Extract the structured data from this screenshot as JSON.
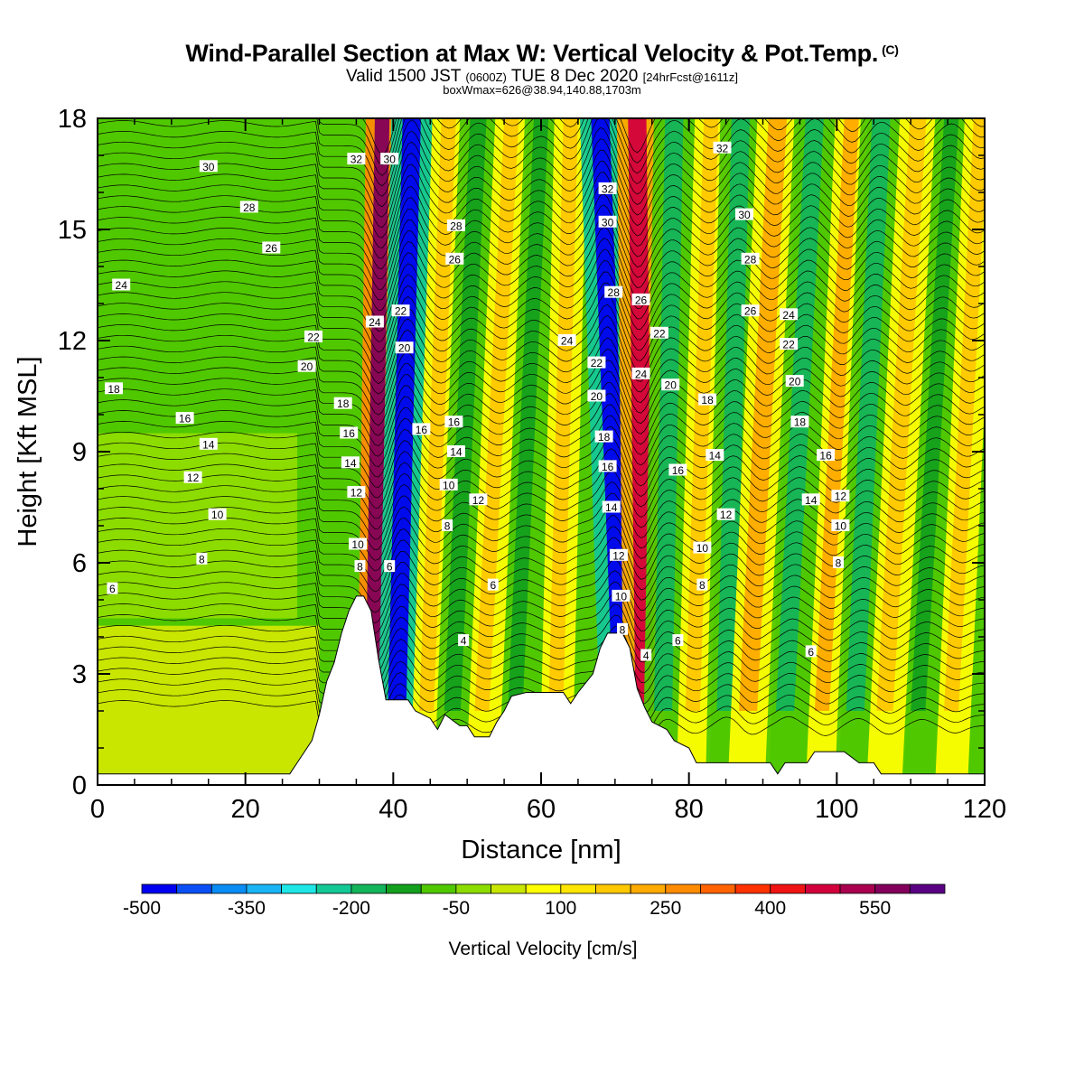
{
  "title": {
    "main": "Wind-Parallel Section at Max W: Vertical Velocity & Pot.Temp.",
    "copyright": "(C)",
    "valid_prefix": "Valid 1500 JST",
    "valid_utc": "(0600Z)",
    "valid_date": "TUE 8 Dec 2020",
    "forecast": "[24hrFcst@1611z]",
    "boxinfo": "boxWmax=626@38.94,140.88,1703m"
  },
  "chart_data": {
    "type": "heatmap",
    "xlabel": "Distance [nm]",
    "ylabel": "Height [Kft MSL]",
    "xlim": [
      0,
      120
    ],
    "ylim": [
      0,
      18
    ],
    "x_ticks": [
      "0",
      "20",
      "40",
      "60",
      "80",
      "100",
      "120"
    ],
    "y_ticks": [
      "0",
      "3",
      "6",
      "9",
      "12",
      "15",
      "18"
    ],
    "colorbar": {
      "label": "Vertical Velocity [cm/s]",
      "tick_labels": [
        "-500",
        "-350",
        "-200",
        "-50",
        "100",
        "250",
        "400",
        "550"
      ],
      "tick_values": [
        -500,
        -350,
        -200,
        -50,
        100,
        250,
        400,
        550
      ],
      "bins": [
        -500,
        -450,
        -400,
        -350,
        -300,
        -250,
        -200,
        -150,
        -100,
        -50,
        0,
        50,
        100,
        150,
        200,
        250,
        300,
        350,
        400,
        450,
        500,
        550,
        600
      ],
      "colors": [
        "#0000f0",
        "#0a50f5",
        "#0a8cf5",
        "#1ab4f5",
        "#1ee6e6",
        "#14c896",
        "#14b45a",
        "#14a01e",
        "#50c800",
        "#8cdc00",
        "#c8e600",
        "#ffff00",
        "#ffe600",
        "#ffc800",
        "#ffaa00",
        "#ff8c00",
        "#ff6400",
        "#ff3200",
        "#f01414",
        "#d2003c",
        "#aa0050",
        "#82005a",
        "#5a0082"
      ]
    },
    "terrain_kft": [
      [
        0,
        0.3
      ],
      [
        26,
        0.3
      ],
      [
        27,
        0.6
      ],
      [
        29,
        1.2
      ],
      [
        30,
        1.9
      ],
      [
        31,
        2.8
      ],
      [
        32,
        3.3
      ],
      [
        33,
        4.1
      ],
      [
        34,
        4.7
      ],
      [
        35,
        5.1
      ],
      [
        36,
        5.1
      ],
      [
        37,
        4.7
      ],
      [
        38,
        3.4
      ],
      [
        39,
        2.3
      ],
      [
        40,
        2.3
      ],
      [
        42,
        2.3
      ],
      [
        43,
        2.0
      ],
      [
        45,
        1.8
      ],
      [
        46,
        1.5
      ],
      [
        47,
        1.9
      ],
      [
        49,
        1.6
      ],
      [
        50,
        1.6
      ],
      [
        51,
        1.3
      ],
      [
        53,
        1.3
      ],
      [
        54,
        1.7
      ],
      [
        55,
        2.0
      ],
      [
        56,
        2.4
      ],
      [
        58,
        2.5
      ],
      [
        63,
        2.5
      ],
      [
        64,
        2.2
      ],
      [
        65,
        2.5
      ],
      [
        67,
        3.0
      ],
      [
        68,
        3.7
      ],
      [
        69,
        4.1
      ],
      [
        71,
        4.1
      ],
      [
        72,
        3.7
      ],
      [
        73,
        2.6
      ],
      [
        74,
        2.1
      ],
      [
        75,
        1.7
      ],
      [
        77,
        1.5
      ],
      [
        78,
        1.2
      ],
      [
        80,
        1.0
      ],
      [
        81,
        0.6
      ],
      [
        84,
        0.6
      ],
      [
        91,
        0.6
      ],
      [
        92,
        0.3
      ],
      [
        93,
        0.6
      ],
      [
        96,
        0.6
      ],
      [
        97,
        0.9
      ],
      [
        101,
        0.9
      ],
      [
        103,
        0.6
      ],
      [
        105,
        0.6
      ],
      [
        106,
        0.3
      ],
      [
        120,
        0.3
      ]
    ],
    "wave_bands": [
      {
        "x_at_top": 38.5,
        "x_at_base": 37.2,
        "w": 560
      },
      {
        "x_at_top": 42.5,
        "x_at_base": 40.5,
        "w": -460
      },
      {
        "x_at_top": 47.5,
        "x_at_base": 44.5,
        "w": 180
      },
      {
        "x_at_top": 51.5,
        "x_at_base": 48.0,
        "w": -150
      },
      {
        "x_at_top": 56.0,
        "x_at_base": 52.0,
        "w": 150
      },
      {
        "x_at_top": 60.0,
        "x_at_base": 56.5,
        "w": -120
      },
      {
        "x_at_top": 64.0,
        "x_at_base": 62.0,
        "w": 170
      },
      {
        "x_at_top": 68.0,
        "x_at_base": 71.0,
        "w": -500
      },
      {
        "x_at_top": 73.0,
        "x_at_base": 74.0,
        "w": 470
      },
      {
        "x_at_top": 78.0,
        "x_at_base": 76.5,
        "w": -180
      },
      {
        "x_at_top": 83.0,
        "x_at_base": 80.5,
        "w": 170
      },
      {
        "x_at_top": 87.0,
        "x_at_base": 85.0,
        "w": -200
      },
      {
        "x_at_top": 92.0,
        "x_at_base": 88.0,
        "w": 200
      },
      {
        "x_at_top": 97.0,
        "x_at_base": 93.0,
        "w": -200
      },
      {
        "x_at_top": 102.0,
        "x_at_base": 98.0,
        "w": 220
      },
      {
        "x_at_top": 106.0,
        "x_at_base": 102.5,
        "w": -160
      },
      {
        "x_at_top": 111.0,
        "x_at_base": 106.5,
        "w": 190
      },
      {
        "x_at_top": 115.5,
        "x_at_base": 111.0,
        "w": -140
      },
      {
        "x_at_top": 119.5,
        "x_at_base": 115.5,
        "w": 160
      }
    ],
    "theta_labels": [
      {
        "text": "30",
        "x": 15,
        "y": 16.7
      },
      {
        "text": "28",
        "x": 20.5,
        "y": 15.6
      },
      {
        "text": "26",
        "x": 23.5,
        "y": 14.5
      },
      {
        "text": "24",
        "x": 3.2,
        "y": 13.5
      },
      {
        "text": "22",
        "x": 29.2,
        "y": 12.1
      },
      {
        "text": "20",
        "x": 28.3,
        "y": 11.3
      },
      {
        "text": "18",
        "x": 2.2,
        "y": 10.7
      },
      {
        "text": "16",
        "x": 11.8,
        "y": 9.9
      },
      {
        "text": "14",
        "x": 15.0,
        "y": 9.2
      },
      {
        "text": "12",
        "x": 12.9,
        "y": 8.3
      },
      {
        "text": "10",
        "x": 16.2,
        "y": 7.3
      },
      {
        "text": "8",
        "x": 14.1,
        "y": 6.1
      },
      {
        "text": "6",
        "x": 2.0,
        "y": 5.3
      },
      {
        "text": "32",
        "x": 35.0,
        "y": 16.9
      },
      {
        "text": "30",
        "x": 39.5,
        "y": 16.9
      },
      {
        "text": "18",
        "x": 33.2,
        "y": 10.3
      },
      {
        "text": "16",
        "x": 34.0,
        "y": 9.5
      },
      {
        "text": "14",
        "x": 34.2,
        "y": 8.7
      },
      {
        "text": "12",
        "x": 35.0,
        "y": 7.9
      },
      {
        "text": "10",
        "x": 35.2,
        "y": 6.5
      },
      {
        "text": "8",
        "x": 35.5,
        "y": 5.9
      },
      {
        "text": "24",
        "x": 37.5,
        "y": 12.5
      },
      {
        "text": "22",
        "x": 41.0,
        "y": 12.8
      },
      {
        "text": "20",
        "x": 41.5,
        "y": 11.8
      },
      {
        "text": "6",
        "x": 39.5,
        "y": 5.9
      },
      {
        "text": "28",
        "x": 48.5,
        "y": 15.1
      },
      {
        "text": "26",
        "x": 48.3,
        "y": 14.2
      },
      {
        "text": "16",
        "x": 43.8,
        "y": 9.6
      },
      {
        "text": "16",
        "x": 48.2,
        "y": 9.8
      },
      {
        "text": "14",
        "x": 48.5,
        "y": 9.0
      },
      {
        "text": "10",
        "x": 47.5,
        "y": 8.1
      },
      {
        "text": "12",
        "x": 51.5,
        "y": 7.7
      },
      {
        "text": "8",
        "x": 47.3,
        "y": 7.0
      },
      {
        "text": "6",
        "x": 53.5,
        "y": 5.4
      },
      {
        "text": "4",
        "x": 49.5,
        "y": 3.9
      },
      {
        "text": "24",
        "x": 63.5,
        "y": 12.0
      },
      {
        "text": "32",
        "x": 69.0,
        "y": 16.1
      },
      {
        "text": "30",
        "x": 69.0,
        "y": 15.2
      },
      {
        "text": "28",
        "x": 69.8,
        "y": 13.3
      },
      {
        "text": "22",
        "x": 67.5,
        "y": 11.4
      },
      {
        "text": "20",
        "x": 67.5,
        "y": 10.5
      },
      {
        "text": "18",
        "x": 68.5,
        "y": 9.4
      },
      {
        "text": "16",
        "x": 69.0,
        "y": 8.6
      },
      {
        "text": "14",
        "x": 69.5,
        "y": 7.5
      },
      {
        "text": "12",
        "x": 70.5,
        "y": 6.2
      },
      {
        "text": "10",
        "x": 70.8,
        "y": 5.1
      },
      {
        "text": "8",
        "x": 71.0,
        "y": 4.2
      },
      {
        "text": "26",
        "x": 73.5,
        "y": 13.1
      },
      {
        "text": "24",
        "x": 73.5,
        "y": 11.1
      },
      {
        "text": "22",
        "x": 76.0,
        "y": 12.2
      },
      {
        "text": "20",
        "x": 77.5,
        "y": 10.8
      },
      {
        "text": "4",
        "x": 74.2,
        "y": 3.5
      },
      {
        "text": "6",
        "x": 78.5,
        "y": 3.9
      },
      {
        "text": "18",
        "x": 82.5,
        "y": 10.4
      },
      {
        "text": "16",
        "x": 78.5,
        "y": 8.5
      },
      {
        "text": "14",
        "x": 83.5,
        "y": 8.9
      },
      {
        "text": "12",
        "x": 85.0,
        "y": 7.3
      },
      {
        "text": "10",
        "x": 81.8,
        "y": 6.4
      },
      {
        "text": "8",
        "x": 81.8,
        "y": 5.4
      },
      {
        "text": "32",
        "x": 84.5,
        "y": 17.2
      },
      {
        "text": "30",
        "x": 87.5,
        "y": 15.4
      },
      {
        "text": "28",
        "x": 88.3,
        "y": 14.2
      },
      {
        "text": "26",
        "x": 88.3,
        "y": 12.8
      },
      {
        "text": "24",
        "x": 93.5,
        "y": 12.7
      },
      {
        "text": "22",
        "x": 93.5,
        "y": 11.9
      },
      {
        "text": "20",
        "x": 94.3,
        "y": 10.9
      },
      {
        "text": "18",
        "x": 95.0,
        "y": 9.8
      },
      {
        "text": "16",
        "x": 98.5,
        "y": 8.9
      },
      {
        "text": "14",
        "x": 96.5,
        "y": 7.7
      },
      {
        "text": "12",
        "x": 100.5,
        "y": 7.8
      },
      {
        "text": "10",
        "x": 100.5,
        "y": 7.0
      },
      {
        "text": "8",
        "x": 100.2,
        "y": 6.0
      },
      {
        "text": "6",
        "x": 96.5,
        "y": 3.6
      }
    ]
  }
}
